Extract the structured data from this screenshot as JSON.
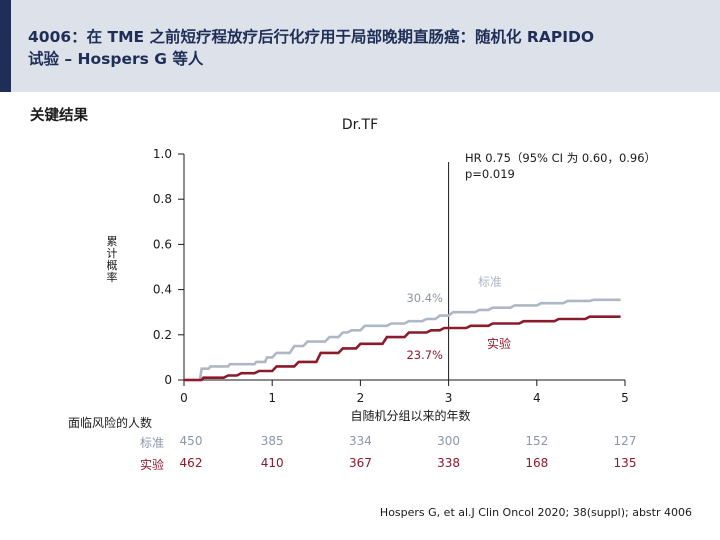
{
  "header": {
    "title_line1": "4006：在 TME 之前短疗程放疗后行化疗用于局部晚期直肠癌：随机化 RAPIDO",
    "title_line2": "试验 – Hospers G 等人"
  },
  "section_label": "关键结果",
  "chart_data": {
    "type": "line",
    "title": "Dr.TF",
    "xlabel": "自随机分组以来的年数",
    "ylabel": "累计概率",
    "xlim": [
      0,
      5
    ],
    "ylim": [
      0,
      1.0
    ],
    "x_ticks": [
      "0",
      "1",
      "2",
      "3",
      "4",
      "5"
    ],
    "y_ticks": [
      "0",
      "0.2",
      "0.4",
      "0.6",
      "0.8",
      "1.0"
    ],
    "hr_annotation_line1": "HR 0.75（95% CI 为 0.60，0.96）",
    "hr_annotation_line2": "p=0.019",
    "reference_x": 3,
    "series": [
      {
        "name": "标准",
        "color": "#aeb7c6",
        "annotation": "30.4%",
        "x": [
          0,
          0.18,
          0.2,
          0.28,
          0.3,
          0.5,
          0.52,
          0.8,
          0.82,
          0.92,
          0.94,
          1.0,
          1.05,
          1.2,
          1.25,
          1.35,
          1.4,
          1.6,
          1.65,
          1.75,
          1.8,
          1.85,
          1.9,
          2.0,
          2.05,
          2.3,
          2.35,
          2.5,
          2.55,
          2.7,
          2.75,
          2.85,
          2.9,
          3.0,
          3.05,
          3.3,
          3.35,
          3.45,
          3.5,
          3.7,
          3.75,
          4.0,
          4.05,
          4.3,
          4.35,
          4.6,
          4.65,
          4.95
        ],
        "values": [
          0,
          0,
          0.05,
          0.05,
          0.06,
          0.06,
          0.07,
          0.07,
          0.08,
          0.08,
          0.1,
          0.1,
          0.12,
          0.12,
          0.15,
          0.15,
          0.17,
          0.17,
          0.19,
          0.19,
          0.21,
          0.21,
          0.22,
          0.22,
          0.24,
          0.24,
          0.25,
          0.25,
          0.26,
          0.26,
          0.27,
          0.27,
          0.285,
          0.285,
          0.3,
          0.3,
          0.31,
          0.31,
          0.32,
          0.32,
          0.33,
          0.33,
          0.34,
          0.34,
          0.35,
          0.35,
          0.355,
          0.355
        ]
      },
      {
        "name": "实验",
        "color": "#8b1a2b",
        "annotation": "23.7%",
        "x": [
          0,
          0.2,
          0.22,
          0.45,
          0.5,
          0.6,
          0.65,
          0.8,
          0.85,
          1.0,
          1.05,
          1.25,
          1.3,
          1.5,
          1.55,
          1.75,
          1.8,
          1.95,
          2.0,
          2.25,
          2.3,
          2.5,
          2.55,
          2.75,
          2.8,
          2.9,
          2.95,
          3.2,
          3.25,
          3.45,
          3.5,
          3.8,
          3.85,
          4.2,
          4.25,
          4.55,
          4.6,
          4.95
        ],
        "values": [
          0,
          0,
          0.01,
          0.01,
          0.02,
          0.02,
          0.03,
          0.03,
          0.04,
          0.04,
          0.06,
          0.06,
          0.08,
          0.08,
          0.12,
          0.12,
          0.14,
          0.14,
          0.16,
          0.16,
          0.19,
          0.19,
          0.21,
          0.21,
          0.22,
          0.22,
          0.23,
          0.23,
          0.24,
          0.24,
          0.25,
          0.25,
          0.26,
          0.26,
          0.27,
          0.27,
          0.28,
          0.28
        ]
      }
    ]
  },
  "risk_table": {
    "title": "面临风险的人数",
    "rows": [
      {
        "label": "标准",
        "values": [
          "450",
          "385",
          "334",
          "300",
          "152",
          "127"
        ]
      },
      {
        "label": "实验",
        "values": [
          "462",
          "410",
          "367",
          "338",
          "168",
          "135"
        ]
      }
    ]
  },
  "footnote": "Hospers G, et al.J Clin Oncol 2020; 38(suppl); abstr 4006"
}
